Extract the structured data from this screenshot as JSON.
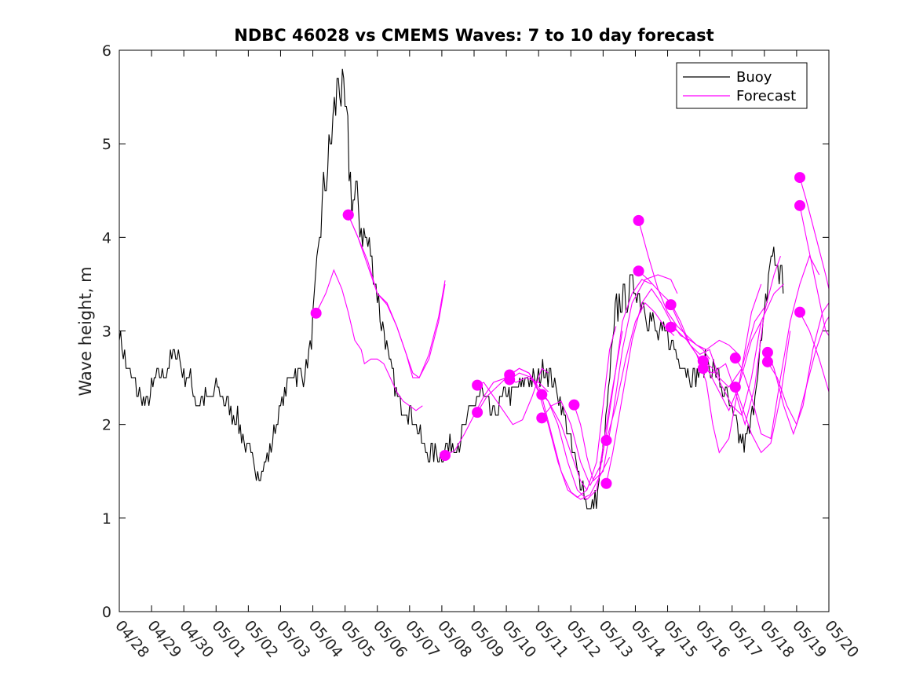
{
  "chart_data": {
    "type": "line",
    "title": "NDBC 46028 vs CMEMS Waves: 7 to 10 day forecast",
    "xlabel": "",
    "ylabel": "Wave height, m",
    "x_range_days": [
      0,
      22
    ],
    "ylim": [
      0,
      6
    ],
    "y_ticks": [
      "0",
      "1",
      "2",
      "3",
      "4",
      "5",
      "6"
    ],
    "x_ticks": [
      "04/28",
      "04/29",
      "04/30",
      "05/01",
      "05/02",
      "05/03",
      "05/04",
      "05/05",
      "05/06",
      "05/07",
      "05/08",
      "05/09",
      "05/10",
      "05/11",
      "05/12",
      "05/13",
      "05/14",
      "05/15",
      "05/16",
      "05/17",
      "05/18",
      "05/19",
      "05/20"
    ],
    "legend": {
      "position": "top-right",
      "entries": [
        "Buoy",
        "Forecast"
      ]
    },
    "colors": {
      "buoy": "#000000",
      "forecast": "#ff00ff"
    },
    "buoy": [
      [
        0.0,
        3.0
      ],
      [
        0.2,
        2.65
      ],
      [
        0.4,
        2.45
      ],
      [
        0.6,
        2.35
      ],
      [
        0.8,
        2.2
      ],
      [
        1.0,
        2.35
      ],
      [
        1.2,
        2.55
      ],
      [
        1.4,
        2.55
      ],
      [
        1.6,
        2.7
      ],
      [
        1.8,
        2.8
      ],
      [
        2.0,
        2.55
      ],
      [
        2.2,
        2.5
      ],
      [
        2.4,
        2.25
      ],
      [
        2.6,
        2.3
      ],
      [
        2.8,
        2.25
      ],
      [
        3.0,
        2.4
      ],
      [
        3.2,
        2.3
      ],
      [
        3.4,
        2.2
      ],
      [
        3.6,
        2.1
      ],
      [
        3.8,
        1.9
      ],
      [
        4.0,
        1.7
      ],
      [
        4.2,
        1.55
      ],
      [
        4.4,
        1.5
      ],
      [
        4.6,
        1.65
      ],
      [
        4.8,
        1.95
      ],
      [
        5.0,
        2.2
      ],
      [
        5.2,
        2.4
      ],
      [
        5.4,
        2.6
      ],
      [
        5.6,
        2.5
      ],
      [
        5.8,
        2.6
      ],
      [
        6.0,
        3.0
      ],
      [
        6.2,
        4.0
      ],
      [
        6.4,
        4.6
      ],
      [
        6.6,
        5.1
      ],
      [
        6.8,
        5.75
      ],
      [
        7.0,
        5.3
      ],
      [
        7.2,
        4.5
      ],
      [
        7.4,
        4.3
      ],
      [
        7.6,
        4.0
      ],
      [
        7.8,
        3.8
      ],
      [
        8.0,
        3.4
      ],
      [
        8.2,
        3.0
      ],
      [
        8.4,
        2.6
      ],
      [
        8.6,
        2.3
      ],
      [
        8.8,
        2.2
      ],
      [
        9.0,
        2.15
      ],
      [
        9.2,
        2.0
      ],
      [
        9.4,
        1.8
      ],
      [
        9.6,
        1.7
      ],
      [
        9.8,
        1.7
      ],
      [
        10.0,
        1.72
      ],
      [
        10.2,
        1.75
      ],
      [
        10.4,
        1.8
      ],
      [
        10.6,
        1.85
      ],
      [
        10.8,
        2.05
      ],
      [
        11.0,
        2.2
      ],
      [
        11.2,
        2.35
      ],
      [
        11.4,
        2.2
      ],
      [
        11.6,
        2.1
      ],
      [
        11.8,
        2.2
      ],
      [
        12.0,
        2.35
      ],
      [
        12.2,
        2.3
      ],
      [
        12.4,
        2.4
      ],
      [
        12.6,
        2.5
      ],
      [
        12.8,
        2.45
      ],
      [
        13.0,
        2.5
      ],
      [
        13.2,
        2.6
      ],
      [
        13.4,
        2.5
      ],
      [
        13.6,
        2.35
      ],
      [
        13.8,
        2.1
      ],
      [
        14.0,
        1.75
      ],
      [
        14.2,
        1.5
      ],
      [
        14.4,
        1.3
      ],
      [
        14.6,
        1.05
      ],
      [
        14.8,
        1.2
      ],
      [
        15.0,
        1.7
      ],
      [
        15.2,
        2.5
      ],
      [
        15.4,
        3.2
      ],
      [
        15.6,
        3.35
      ],
      [
        15.8,
        3.4
      ],
      [
        16.0,
        3.5
      ],
      [
        16.2,
        3.35
      ],
      [
        16.4,
        3.2
      ],
      [
        16.6,
        3.0
      ],
      [
        16.8,
        2.95
      ],
      [
        17.0,
        2.95
      ],
      [
        17.2,
        2.8
      ],
      [
        17.4,
        2.7
      ],
      [
        17.6,
        2.6
      ],
      [
        17.8,
        2.5
      ],
      [
        18.0,
        2.6
      ],
      [
        18.2,
        2.7
      ],
      [
        18.4,
        2.6
      ],
      [
        18.6,
        2.5
      ],
      [
        18.8,
        2.3
      ],
      [
        19.0,
        2.1
      ],
      [
        19.2,
        1.9
      ],
      [
        19.4,
        1.75
      ],
      [
        19.6,
        2.0
      ],
      [
        19.8,
        2.6
      ],
      [
        20.0,
        3.1
      ],
      [
        20.2,
        3.8
      ],
      [
        20.4,
        3.7
      ],
      [
        20.6,
        3.5
      ]
    ],
    "forecast_series": [
      [
        [
          6.1,
          3.19
        ],
        [
          6.4,
          3.4
        ],
        [
          6.65,
          3.65
        ],
        [
          6.9,
          3.45
        ],
        [
          7.1,
          3.2
        ],
        [
          7.3,
          2.9
        ],
        [
          7.5,
          2.8
        ],
        [
          7.6,
          2.65
        ],
        [
          7.8,
          2.7
        ],
        [
          8.0,
          2.7
        ],
        [
          8.2,
          2.65
        ],
        [
          8.4,
          2.5
        ],
        [
          8.6,
          2.35
        ],
        [
          8.8,
          2.25
        ],
        [
          9.0,
          2.2
        ],
        [
          9.2,
          2.15
        ],
        [
          9.4,
          2.2
        ]
      ],
      [
        [
          7.1,
          4.24
        ],
        [
          7.4,
          4.0
        ],
        [
          7.7,
          3.7
        ],
        [
          8.0,
          3.4
        ],
        [
          8.3,
          3.3
        ],
        [
          8.6,
          3.05
        ],
        [
          8.9,
          2.75
        ],
        [
          9.1,
          2.55
        ],
        [
          9.3,
          2.5
        ],
        [
          9.6,
          2.7
        ],
        [
          9.9,
          3.1
        ],
        [
          10.1,
          3.5
        ]
      ],
      [
        [
          7.1,
          4.24
        ],
        [
          7.4,
          4.0
        ],
        [
          7.7,
          3.75
        ],
        [
          8.0,
          3.4
        ],
        [
          8.3,
          3.28
        ],
        [
          8.6,
          3.05
        ],
        [
          8.9,
          2.75
        ],
        [
          9.1,
          2.5
        ],
        [
          9.3,
          2.5
        ],
        [
          9.6,
          2.75
        ],
        [
          9.9,
          3.15
        ],
        [
          10.1,
          3.54
        ]
      ],
      [
        [
          10.1,
          1.67
        ],
        [
          10.4,
          1.72
        ],
        [
          10.7,
          1.9
        ],
        [
          11.0,
          2.1
        ],
        [
          11.3,
          2.3
        ],
        [
          11.6,
          2.45
        ],
        [
          12.0,
          2.5
        ],
        [
          12.3,
          2.45
        ],
        [
          12.6,
          2.5
        ],
        [
          13.0,
          2.45
        ],
        [
          13.3,
          2.35
        ]
      ],
      [
        [
          11.1,
          2.42
        ],
        [
          11.3,
          2.45
        ],
        [
          11.6,
          2.3
        ],
        [
          11.9,
          2.15
        ],
        [
          12.2,
          2.0
        ],
        [
          12.5,
          2.05
        ],
        [
          12.8,
          2.3
        ],
        [
          13.1,
          2.6
        ],
        [
          13.3,
          2.55
        ]
      ],
      [
        [
          11.1,
          2.13
        ],
        [
          11.4,
          2.3
        ],
        [
          11.7,
          2.4
        ],
        [
          12.0,
          2.5
        ],
        [
          12.4,
          2.6
        ],
        [
          12.7,
          2.55
        ],
        [
          13.0,
          2.4
        ],
        [
          13.3,
          2.25
        ],
        [
          13.7,
          2.0
        ],
        [
          14.0,
          1.7
        ],
        [
          14.3,
          1.4
        ],
        [
          14.5,
          1.3
        ]
      ],
      [
        [
          12.1,
          2.53
        ],
        [
          12.4,
          2.6
        ],
        [
          12.7,
          2.55
        ],
        [
          13.0,
          2.35
        ],
        [
          13.3,
          2.0
        ],
        [
          13.6,
          1.6
        ],
        [
          13.9,
          1.3
        ],
        [
          14.2,
          1.22
        ],
        [
          14.5,
          1.3
        ],
        [
          14.8,
          1.6
        ],
        [
          15.0,
          2.2
        ],
        [
          15.2,
          2.8
        ],
        [
          15.4,
          3.05
        ]
      ],
      [
        [
          12.1,
          2.48
        ],
        [
          12.4,
          2.55
        ],
        [
          12.8,
          2.5
        ],
        [
          13.1,
          2.3
        ],
        [
          13.4,
          1.9
        ],
        [
          13.7,
          1.5
        ],
        [
          14.0,
          1.28
        ],
        [
          14.3,
          1.2
        ],
        [
          14.6,
          1.25
        ],
        [
          14.9,
          1.45
        ],
        [
          15.2,
          1.65
        ]
      ],
      [
        [
          13.1,
          2.32
        ],
        [
          13.3,
          2.25
        ],
        [
          13.6,
          2.0
        ],
        [
          13.9,
          1.6
        ],
        [
          14.2,
          1.3
        ],
        [
          14.5,
          1.2
        ],
        [
          14.8,
          1.3
        ],
        [
          15.1,
          1.9
        ],
        [
          15.4,
          2.6
        ],
        [
          15.6,
          3.1
        ],
        [
          15.9,
          3.4
        ],
        [
          16.2,
          3.55
        ],
        [
          16.5,
          3.5
        ]
      ],
      [
        [
          13.1,
          2.07
        ],
        [
          13.4,
          2.2
        ],
        [
          13.7,
          2.25
        ],
        [
          14.0,
          2.0
        ],
        [
          14.3,
          1.6
        ],
        [
          14.6,
          1.35
        ],
        [
          14.9,
          1.55
        ],
        [
          15.2,
          2.2
        ],
        [
          15.4,
          2.6
        ],
        [
          15.6,
          3.0
        ]
      ],
      [
        [
          14.1,
          2.21
        ],
        [
          14.3,
          2.0
        ],
        [
          14.5,
          1.65
        ],
        [
          14.7,
          1.4
        ],
        [
          15.0,
          1.5
        ],
        [
          15.3,
          2.1
        ],
        [
          15.6,
          2.8
        ],
        [
          15.9,
          3.3
        ],
        [
          16.3,
          3.55
        ],
        [
          16.7,
          3.6
        ],
        [
          17.1,
          3.55
        ],
        [
          17.3,
          3.4
        ]
      ],
      [
        [
          15.1,
          1.37
        ],
        [
          15.3,
          1.7
        ],
        [
          15.6,
          2.3
        ],
        [
          15.9,
          2.9
        ],
        [
          16.2,
          3.3
        ],
        [
          16.5,
          3.45
        ],
        [
          16.8,
          3.3
        ],
        [
          17.1,
          3.1
        ],
        [
          17.4,
          2.95
        ],
        [
          17.7,
          2.9
        ],
        [
          18.1,
          2.8
        ],
        [
          18.3,
          2.7
        ]
      ],
      [
        [
          15.1,
          1.83
        ],
        [
          15.4,
          2.2
        ],
        [
          15.7,
          2.7
        ],
        [
          16.0,
          3.1
        ],
        [
          16.3,
          3.3
        ],
        [
          16.6,
          3.2
        ],
        [
          16.9,
          3.05
        ],
        [
          17.2,
          2.95
        ]
      ],
      [
        [
          16.1,
          4.18
        ],
        [
          16.4,
          3.8
        ],
        [
          16.7,
          3.45
        ],
        [
          17.0,
          3.2
        ],
        [
          17.3,
          3.05
        ],
        [
          17.6,
          2.95
        ],
        [
          17.9,
          2.85
        ],
        [
          18.2,
          2.8
        ],
        [
          18.6,
          2.9
        ],
        [
          18.9,
          2.85
        ],
        [
          19.2,
          2.75
        ]
      ],
      [
        [
          16.1,
          3.64
        ],
        [
          16.4,
          3.55
        ],
        [
          16.8,
          3.4
        ],
        [
          17.1,
          3.3
        ],
        [
          17.4,
          3.1
        ],
        [
          17.7,
          2.85
        ],
        [
          18.0,
          2.75
        ],
        [
          18.3,
          2.8
        ],
        [
          18.6,
          2.5
        ],
        [
          18.9,
          2.4
        ],
        [
          19.3,
          2.6
        ],
        [
          19.7,
          3.1
        ],
        [
          20.0,
          3.25
        ]
      ],
      [
        [
          17.1,
          3.28
        ],
        [
          17.4,
          3.05
        ],
        [
          17.7,
          2.85
        ],
        [
          18.0,
          2.7
        ],
        [
          18.3,
          2.55
        ],
        [
          18.6,
          2.35
        ],
        [
          18.9,
          2.15
        ],
        [
          19.2,
          2.4
        ],
        [
          19.6,
          2.9
        ],
        [
          19.9,
          3.1
        ]
      ],
      [
        [
          17.1,
          3.04
        ],
        [
          17.3,
          3.0
        ],
        [
          17.6,
          2.9
        ],
        [
          17.9,
          2.75
        ],
        [
          18.2,
          2.45
        ],
        [
          18.4,
          2.0
        ],
        [
          18.6,
          1.7
        ],
        [
          18.9,
          1.85
        ],
        [
          19.3,
          2.6
        ],
        [
          19.6,
          3.2
        ],
        [
          19.9,
          3.5
        ]
      ],
      [
        [
          18.1,
          2.68
        ],
        [
          18.4,
          2.6
        ],
        [
          18.7,
          2.4
        ],
        [
          19.0,
          2.2
        ],
        [
          19.3,
          2.1
        ],
        [
          19.6,
          2.5
        ],
        [
          19.9,
          3.1
        ],
        [
          20.3,
          3.4
        ],
        [
          20.6,
          3.5
        ]
      ],
      [
        [
          18.1,
          2.6
        ],
        [
          18.4,
          2.55
        ],
        [
          18.8,
          2.65
        ],
        [
          19.1,
          2.35
        ],
        [
          19.4,
          2.0
        ],
        [
          19.7,
          2.4
        ],
        [
          20.0,
          3.2
        ],
        [
          20.3,
          3.6
        ],
        [
          20.5,
          3.8
        ]
      ],
      [
        [
          19.1,
          2.71
        ],
        [
          19.3,
          2.6
        ],
        [
          19.6,
          2.3
        ],
        [
          19.9,
          1.9
        ],
        [
          20.2,
          1.85
        ],
        [
          20.5,
          2.5
        ],
        [
          20.8,
          3.1
        ],
        [
          21.1,
          3.5
        ],
        [
          21.4,
          3.8
        ],
        [
          21.7,
          3.6
        ]
      ],
      [
        [
          19.1,
          2.4
        ],
        [
          19.3,
          2.2
        ],
        [
          19.6,
          1.9
        ],
        [
          19.9,
          1.7
        ],
        [
          20.2,
          1.8
        ],
        [
          20.5,
          2.3
        ],
        [
          20.8,
          3.0
        ]
      ],
      [
        [
          20.1,
          2.77
        ],
        [
          20.3,
          2.6
        ],
        [
          20.6,
          2.2
        ],
        [
          20.9,
          1.9
        ],
        [
          21.2,
          2.2
        ],
        [
          21.5,
          2.8
        ],
        [
          21.8,
          3.2
        ],
        [
          22.0,
          3.3
        ]
      ],
      [
        [
          20.1,
          2.67
        ],
        [
          20.4,
          2.5
        ],
        [
          20.7,
          2.2
        ],
        [
          21.0,
          2.0
        ],
        [
          21.3,
          2.4
        ],
        [
          21.6,
          2.8
        ],
        [
          21.9,
          3.1
        ],
        [
          22.0,
          3.15
        ]
      ],
      [
        [
          21.1,
          4.64
        ],
        [
          21.3,
          4.4
        ],
        [
          21.6,
          4.0
        ],
        [
          21.9,
          3.6
        ],
        [
          22.0,
          3.45
        ]
      ],
      [
        [
          21.1,
          4.34
        ],
        [
          21.3,
          4.0
        ],
        [
          21.6,
          3.5
        ],
        [
          21.9,
          3.0
        ],
        [
          22.0,
          2.95
        ]
      ],
      [
        [
          21.1,
          3.2
        ],
        [
          21.4,
          3.0
        ],
        [
          21.7,
          2.7
        ],
        [
          22.0,
          2.35
        ]
      ]
    ]
  }
}
